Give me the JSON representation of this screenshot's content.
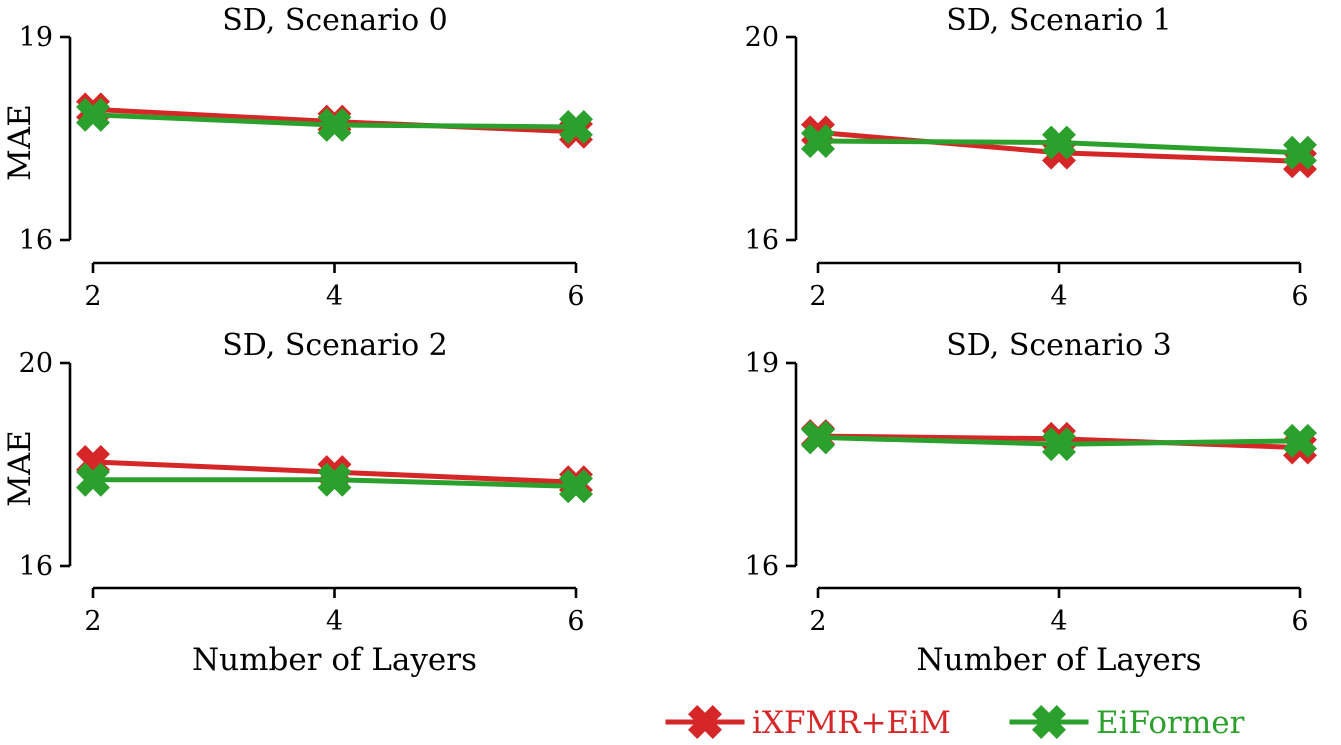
{
  "chart_data": [
    {
      "type": "line",
      "title": "SD, Scenario 0",
      "xlabel": "",
      "ylabel": "MAE",
      "x": [
        2,
        4,
        6
      ],
      "xticks": [
        "2",
        "4",
        "6"
      ],
      "yticks": [
        "16",
        "19"
      ],
      "ylim": [
        16,
        19
      ],
      "series": [
        {
          "name": "iXFMR+EiM",
          "values": [
            17.93,
            17.75,
            17.6
          ]
        },
        {
          "name": "EiFormer",
          "values": [
            17.85,
            17.7,
            17.67
          ]
        }
      ]
    },
    {
      "type": "line",
      "title": "SD, Scenario 1",
      "xlabel": "",
      "ylabel": "",
      "x": [
        2,
        4,
        6
      ],
      "xticks": [
        "2",
        "4",
        "6"
      ],
      "yticks": [
        "16",
        "20"
      ],
      "ylim": [
        16,
        20
      ],
      "series": [
        {
          "name": "iXFMR+EiM",
          "values": [
            18.12,
            17.72,
            17.55
          ]
        },
        {
          "name": "EiFormer",
          "values": [
            17.95,
            17.92,
            17.72
          ]
        }
      ]
    },
    {
      "type": "line",
      "title": "SD, Scenario 2",
      "xlabel": "Number of Layers",
      "ylabel": "MAE",
      "x": [
        2,
        4,
        6
      ],
      "xticks": [
        "2",
        "4",
        "6"
      ],
      "yticks": [
        "16",
        "20"
      ],
      "ylim": [
        16,
        20
      ],
      "series": [
        {
          "name": "iXFMR+EiM",
          "values": [
            18.05,
            17.85,
            17.65
          ]
        },
        {
          "name": "EiFormer",
          "values": [
            17.7,
            17.7,
            17.57
          ]
        }
      ]
    },
    {
      "type": "line",
      "title": "SD, Scenario 3",
      "xlabel": "Number of Layers",
      "ylabel": "",
      "x": [
        2,
        4,
        6
      ],
      "xticks": [
        "2",
        "4",
        "6"
      ],
      "yticks": [
        "16",
        "19"
      ],
      "ylim": [
        16,
        19
      ],
      "series": [
        {
          "name": "iXFMR+EiM",
          "values": [
            17.92,
            17.88,
            17.75
          ]
        },
        {
          "name": "EiFormer",
          "values": [
            17.9,
            17.8,
            17.85
          ]
        }
      ]
    }
  ],
  "legend": {
    "items": [
      {
        "name": "iXFMR+EiM",
        "color": "#d62728"
      },
      {
        "name": "EiFormer",
        "color": "#2ca02c"
      }
    ]
  }
}
